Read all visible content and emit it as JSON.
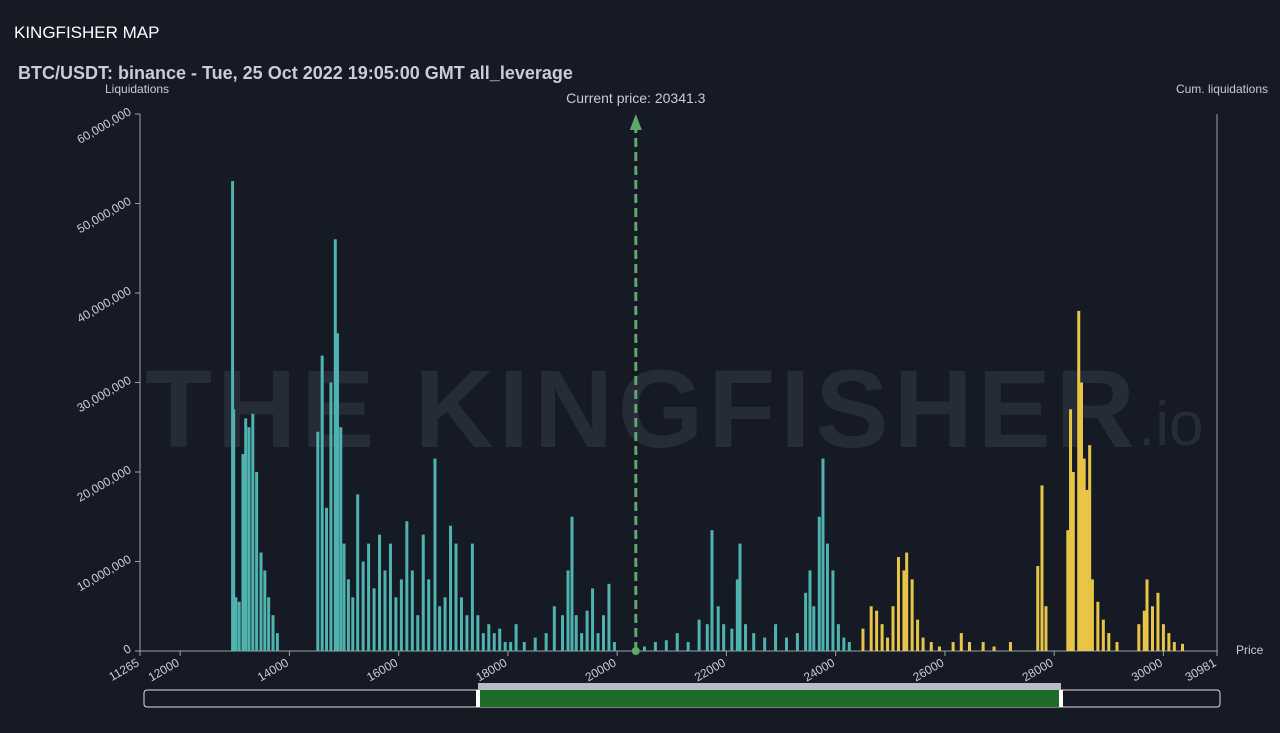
{
  "page_title": "KINGFISHER MAP",
  "chart_data": {
    "type": "bar",
    "title": "BTC/USDT: binance - Tue, 25 Oct 2022 19:05:00 GMT all_leverage",
    "y_label": "Liquidations",
    "y2_label": "Cum. liquidations",
    "x_label": "Price",
    "watermark": "THE KINGFISHER",
    "watermark_suffix": ".io",
    "current_price": {
      "value": 20341.3,
      "label": "Current price: 20341.3"
    },
    "xlim": [
      11265,
      30981
    ],
    "xticks": [
      11265,
      12000,
      14000,
      16000,
      18000,
      20000,
      22000,
      24000,
      26000,
      28000,
      30000,
      30981
    ],
    "ylim": [
      0,
      60000000
    ],
    "yticks": [
      0,
      {
        "value": 10000000,
        "label": "10,000,000"
      },
      {
        "value": 20000000,
        "label": "20,000,000"
      },
      {
        "value": 30000000,
        "label": "30,000,000"
      },
      {
        "value": 40000000,
        "label": "40,000,000"
      },
      {
        "value": 50000000,
        "label": "50,000,000"
      },
      {
        "value": 60000000,
        "label": "60,000,000"
      }
    ],
    "series": [
      {
        "color": "#4fb3b0",
        "x": [
          12960,
          12980,
          13020,
          13080,
          13150,
          13200,
          13260,
          13330,
          13400,
          13480,
          13550,
          13620,
          13700,
          13780,
          14520,
          14600,
          14680,
          14760,
          14840,
          14880,
          14940,
          15000,
          15080,
          15160,
          15250,
          15350,
          15450,
          15550,
          15650,
          15750,
          15850,
          15950,
          16050,
          16150,
          16250,
          16350,
          16450,
          16550,
          16665,
          16750,
          16850,
          16950,
          17050,
          17150,
          17250,
          17350,
          17450,
          17550,
          17650,
          17750,
          17850,
          17950,
          18050,
          18150,
          18300,
          18500,
          18700,
          18850,
          19000,
          19100,
          19173,
          19250,
          19350,
          19450,
          19550,
          19650,
          19750,
          19850,
          19950,
          20500,
          20700,
          20900,
          21100,
          21300,
          21500,
          21650,
          21736,
          21850,
          21950,
          22100,
          22200,
          22249,
          22350,
          22500,
          22700,
          22900,
          23100,
          23300,
          23450,
          23530,
          23600,
          23700,
          23768,
          23850,
          23950,
          24050,
          24150,
          24250
        ],
        "values": [
          52500000,
          27000000,
          6000000,
          5500000,
          22000000,
          26000000,
          25000000,
          26500000,
          20000000,
          11000000,
          9000000,
          6000000,
          4000000,
          2000000,
          24500000,
          33000000,
          16000000,
          30000000,
          46000000,
          35500000,
          25000000,
          12000000,
          8000000,
          6000000,
          17500000,
          10000000,
          12000000,
          7000000,
          13000000,
          9000000,
          12000000,
          6000000,
          8000000,
          14500000,
          9000000,
          4000000,
          13000000,
          8000000,
          21500000,
          5000000,
          6000000,
          14000000,
          12000000,
          6000000,
          4000000,
          12000000,
          4000000,
          2000000,
          3000000,
          2000000,
          2500000,
          1000000,
          1000000,
          3000000,
          1000000,
          1500000,
          2000000,
          5000000,
          4000000,
          9000000,
          15000000,
          4000000,
          2000000,
          4500000,
          7000000,
          2000000,
          4000000,
          7500000,
          1000000,
          500000,
          1000000,
          1200000,
          2000000,
          1000000,
          3500000,
          3000000,
          13500000,
          5000000,
          3000000,
          2500000,
          8000000,
          12000000,
          3000000,
          2000000,
          1500000,
          3000000,
          1500000,
          2000000,
          6500000,
          9000000,
          5000000,
          15000000,
          21500000,
          12000000,
          9000000,
          3000000,
          1500000,
          1000000
        ]
      },
      {
        "color": "#e8c547",
        "x": [
          24500,
          24650,
          24750,
          24850,
          24950,
          25050,
          25150,
          25250,
          25300,
          25400,
          25500,
          25600,
          25750,
          25900,
          26150,
          26300,
          26450,
          26700,
          26900,
          27200,
          27700,
          27777,
          27850,
          28250,
          28300,
          28350,
          28450,
          28500,
          28550,
          28600,
          28650,
          28700,
          28800,
          28900,
          29000,
          29150,
          29550,
          29650,
          29700,
          29800,
          29900,
          30000,
          30100,
          30200,
          30350
        ],
        "values": [
          2500000,
          5000000,
          4500000,
          3000000,
          1500000,
          5000000,
          10500000,
          9000000,
          11000000,
          8000000,
          3500000,
          1500000,
          1000000,
          500000,
          1000000,
          2000000,
          1000000,
          1000000,
          500000,
          1000000,
          9500000,
          18500000,
          5000000,
          13500000,
          27000000,
          20000000,
          38000000,
          30000000,
          21500000,
          18000000,
          23000000,
          8000000,
          5500000,
          3500000,
          2000000,
          1000000,
          3000000,
          4500000,
          8000000,
          5000000,
          6500000,
          3000000,
          2000000,
          1000000,
          800000
        ]
      }
    ]
  }
}
